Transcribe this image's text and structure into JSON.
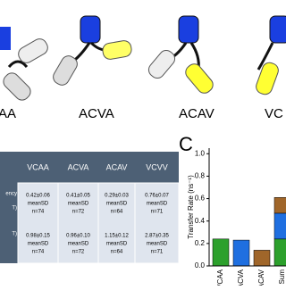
{
  "panel_a": {
    "labels": [
      "AA",
      "ACVA",
      "ACAV",
      "VC"
    ]
  },
  "table": {
    "header": [
      "VCAA",
      "ACVA",
      "ACAV",
      "VCVV"
    ],
    "row_labels": [
      [
        "ency",
        "T)"
      ],
      [
        "T)"
      ]
    ],
    "rows": [
      [
        [
          "0.42±0.06",
          "meanSD",
          "n=74"
        ],
        [
          "0.41±0.05",
          "meanSD",
          "n=72"
        ],
        [
          "0.29±0.03",
          "meanSD",
          "n=64"
        ],
        [
          "0.76±0.07",
          "meanSD",
          "n=71"
        ]
      ],
      [
        [
          "0.98±0.15",
          "meanSD",
          "n=74"
        ],
        [
          "0.96±0.10",
          "meanSD",
          "n=72"
        ],
        [
          "1.15±0.12",
          "meanSD",
          "n=64"
        ],
        [
          "2.87±0.35",
          "meanSD",
          "n=71"
        ]
      ]
    ]
  },
  "chart_data": {
    "type": "bar",
    "panel_label": "C",
    "y_label": "Transfer Rate (ns⁻¹)",
    "categories": [
      "VCAA",
      "ACVA",
      "ACAV",
      "Sum"
    ],
    "series": [
      {
        "color": "#2ca02c",
        "values": [
          0.24,
          null,
          null,
          0.24
        ]
      },
      {
        "color": "#1f6fe0",
        "values": [
          null,
          0.23,
          null,
          0.23
        ]
      },
      {
        "color": "#a0662a",
        "values": [
          null,
          null,
          0.14,
          0.14
        ]
      }
    ],
    "stacked": true,
    "ylim": [
      0,
      1.05
    ],
    "yticks": [
      {
        "value": 0,
        "label": "0.0"
      },
      0.2,
      0.4,
      0.6,
      0.8,
      {
        "value": 1,
        "label": "1.0"
      }
    ]
  }
}
